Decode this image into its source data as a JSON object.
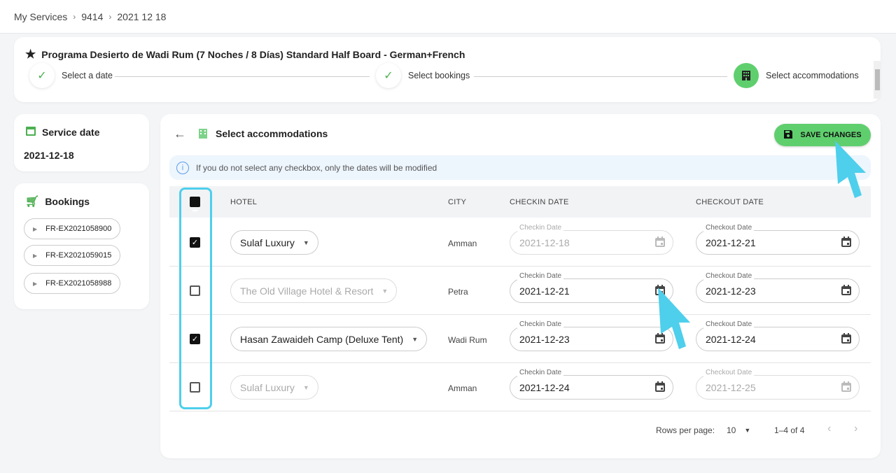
{
  "breadcrumb": [
    "My Services",
    "9414",
    "2021 12 18"
  ],
  "service_title": "Programa Desierto de Wadi Rum (7 Noches / 8 Días) Standard Half Board - German+French",
  "steps": [
    {
      "label": "Select a date",
      "state": "done"
    },
    {
      "label": "Select bookings",
      "state": "done"
    },
    {
      "label": "Select accommodations",
      "state": "active"
    }
  ],
  "service_date": {
    "title": "Service date",
    "value": "2021-12-18"
  },
  "bookings": {
    "title": "Bookings",
    "items": [
      "FR-EX2021058900",
      "FR-EX2021059015",
      "FR-EX2021058988"
    ]
  },
  "main": {
    "title": "Select accommodations",
    "save_label": "SAVE CHANGES",
    "info": "If you do not select any checkbox, only the dates will be modified"
  },
  "table": {
    "headers": {
      "hotel": "HOTEL",
      "city": "CITY",
      "checkin": "CHECKIN DATE",
      "checkout": "CHECKOUT DATE"
    },
    "checkin_label": "Checkin Date",
    "checkout_label": "Checkout Date",
    "rows": [
      {
        "checked": true,
        "hotel": "Sulaf Luxury",
        "city": "Amman",
        "checkin": "2021-12-18",
        "checkout": "2021-12-21",
        "checkin_disabled": true,
        "checkout_disabled": false,
        "hotel_disabled": false
      },
      {
        "checked": false,
        "hotel": "The Old Village Hotel & Resort",
        "city": "Petra",
        "checkin": "2021-12-21",
        "checkout": "2021-12-23",
        "checkin_disabled": false,
        "checkout_disabled": false,
        "hotel_disabled": true
      },
      {
        "checked": true,
        "hotel": "Hasan Zawaideh Camp (Deluxe Tent)",
        "city": "Wadi Rum",
        "checkin": "2021-12-23",
        "checkout": "2021-12-24",
        "checkin_disabled": false,
        "checkout_disabled": false,
        "hotel_disabled": false
      },
      {
        "checked": false,
        "hotel": "Sulaf Luxury",
        "city": "Amman",
        "checkin": "2021-12-24",
        "checkout": "2021-12-25",
        "checkin_disabled": false,
        "checkout_disabled": true,
        "hotel_disabled": true
      }
    ]
  },
  "pagination": {
    "rows_per_page_label": "Rows per page:",
    "rows_per_page": "10",
    "range": "1–4 of 4"
  },
  "colors": {
    "accent": "#5fcf6e",
    "highlight": "#4ecfec",
    "info_bg": "#edf5fd"
  }
}
